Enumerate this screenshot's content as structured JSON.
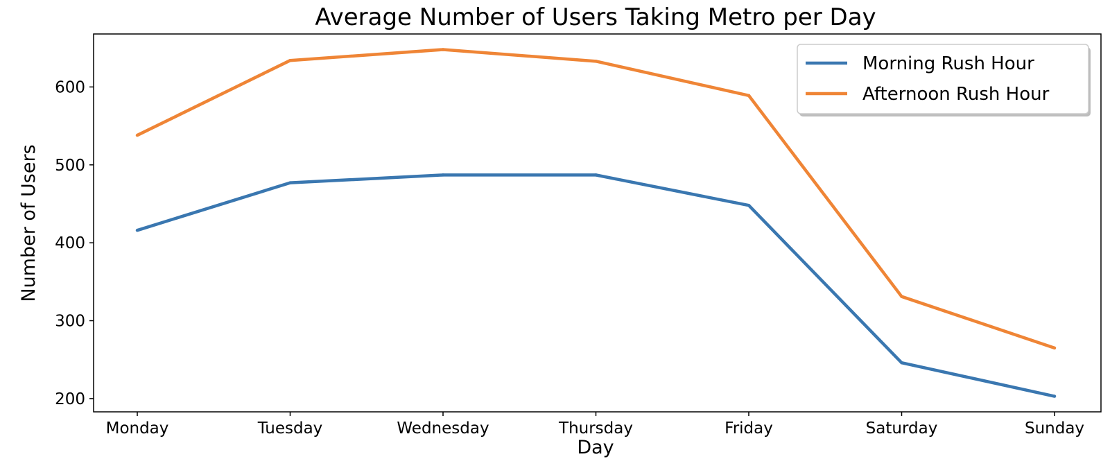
{
  "chart_data": {
    "type": "line",
    "title": "Average Number of Users Taking Metro per Day",
    "xlabel": "Day",
    "ylabel": "Number of Users",
    "categories": [
      "Monday",
      "Tuesday",
      "Wednesday",
      "Thursday",
      "Friday",
      "Saturday",
      "Sunday"
    ],
    "series": [
      {
        "name": "Morning Rush Hour",
        "color": "#3a77b0",
        "values": [
          416,
          477,
          487,
          487,
          448,
          246,
          203
        ]
      },
      {
        "name": "Afternoon Rush Hour",
        "color": "#ef8536",
        "values": [
          538,
          634,
          648,
          633,
          589,
          331,
          265
        ]
      }
    ],
    "yticks": [
      200,
      300,
      400,
      500,
      600
    ],
    "ylim": [
      183,
      668
    ],
    "grid": false,
    "legend": "top-right"
  }
}
